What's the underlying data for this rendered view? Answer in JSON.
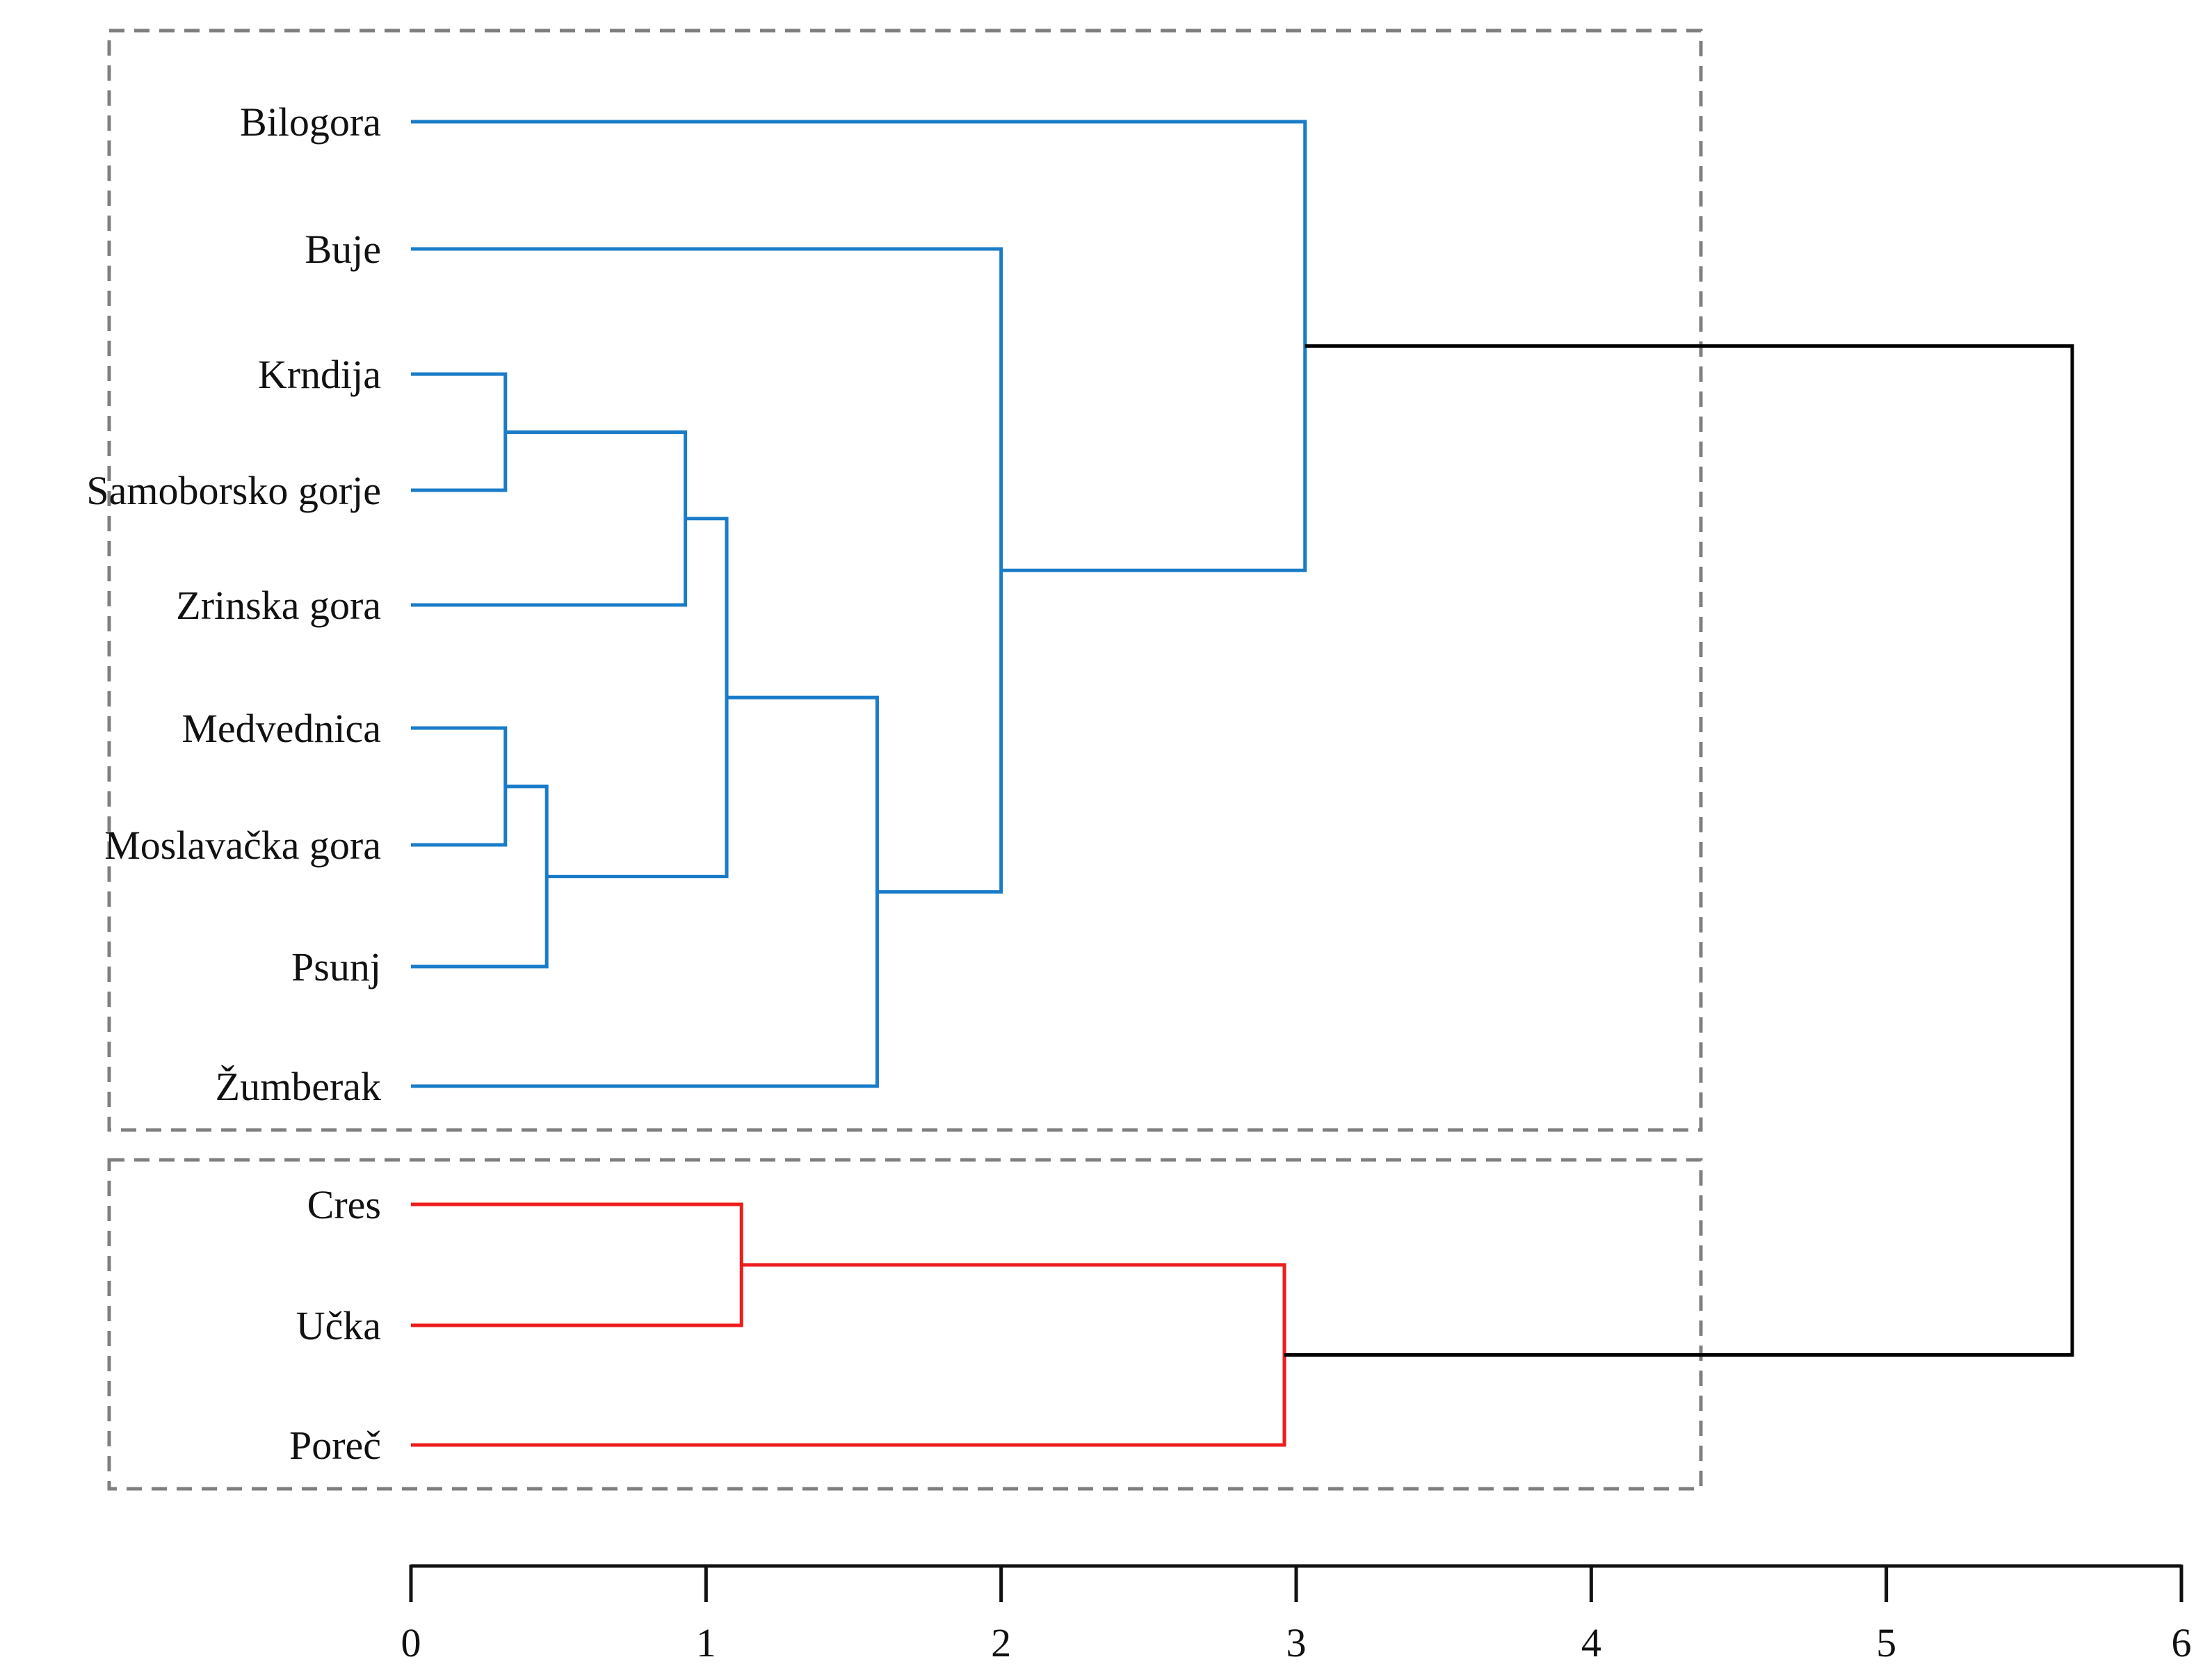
{
  "chart_data": {
    "type": "dendrogram",
    "orientation": "left-to-right",
    "xlim": [
      0,
      6
    ],
    "xticks": [
      0,
      1,
      2,
      3,
      4,
      5,
      6
    ],
    "xlabel": "",
    "ylabel": "",
    "title": "",
    "leaves": [
      "Bilogora",
      "Buje",
      "Krndija",
      "Samoborsko gorje",
      "Zrinska gora",
      "Medvednica",
      "Moslavačka gora",
      "Psunj",
      "Žumberak",
      "Cres",
      "Učka",
      "Poreč"
    ],
    "merges": [
      {
        "id": "m1",
        "children": [
          "Krndija",
          "Samoborsko gorje"
        ],
        "height": 0.32,
        "cluster": "A"
      },
      {
        "id": "m2",
        "children": [
          "Medvednica",
          "Moslavačka gora"
        ],
        "height": 0.32,
        "cluster": "A"
      },
      {
        "id": "m3",
        "children": [
          "m2",
          "Psunj"
        ],
        "height": 0.46,
        "cluster": "A"
      },
      {
        "id": "m4",
        "children": [
          "m1",
          "Zrinska gora"
        ],
        "height": 0.93,
        "cluster": "A"
      },
      {
        "id": "m5",
        "children": [
          "m4",
          "m3"
        ],
        "height": 1.07,
        "cluster": "A"
      },
      {
        "id": "m6",
        "children": [
          "m5",
          "Žumberak"
        ],
        "height": 1.58,
        "cluster": "A"
      },
      {
        "id": "m7",
        "children": [
          "Buje",
          "m6"
        ],
        "height": 2.0,
        "cluster": "A"
      },
      {
        "id": "m8",
        "children": [
          "Bilogora",
          "m7"
        ],
        "height": 3.03,
        "cluster": "A"
      },
      {
        "id": "m9",
        "children": [
          "Cres",
          "Učka"
        ],
        "height": 1.12,
        "cluster": "B"
      },
      {
        "id": "m10",
        "children": [
          "m9",
          "Poreč"
        ],
        "height": 2.96,
        "cluster": "B"
      },
      {
        "id": "m11",
        "children": [
          "m8",
          "m10"
        ],
        "height": 5.63,
        "cluster": "root"
      }
    ],
    "cluster_colors": {
      "A": "#1a7cc9",
      "B": "#ee1c1c",
      "root": "#000000"
    },
    "groups": [
      {
        "name": "A",
        "members": [
          "Bilogora",
          "Buje",
          "Krndija",
          "Samoborsko gorje",
          "Zrinska gora",
          "Medvednica",
          "Moslavačka gora",
          "Psunj",
          "Žumberak"
        ]
      },
      {
        "name": "B",
        "members": [
          "Cres",
          "Učka",
          "Poreč"
        ]
      }
    ]
  }
}
